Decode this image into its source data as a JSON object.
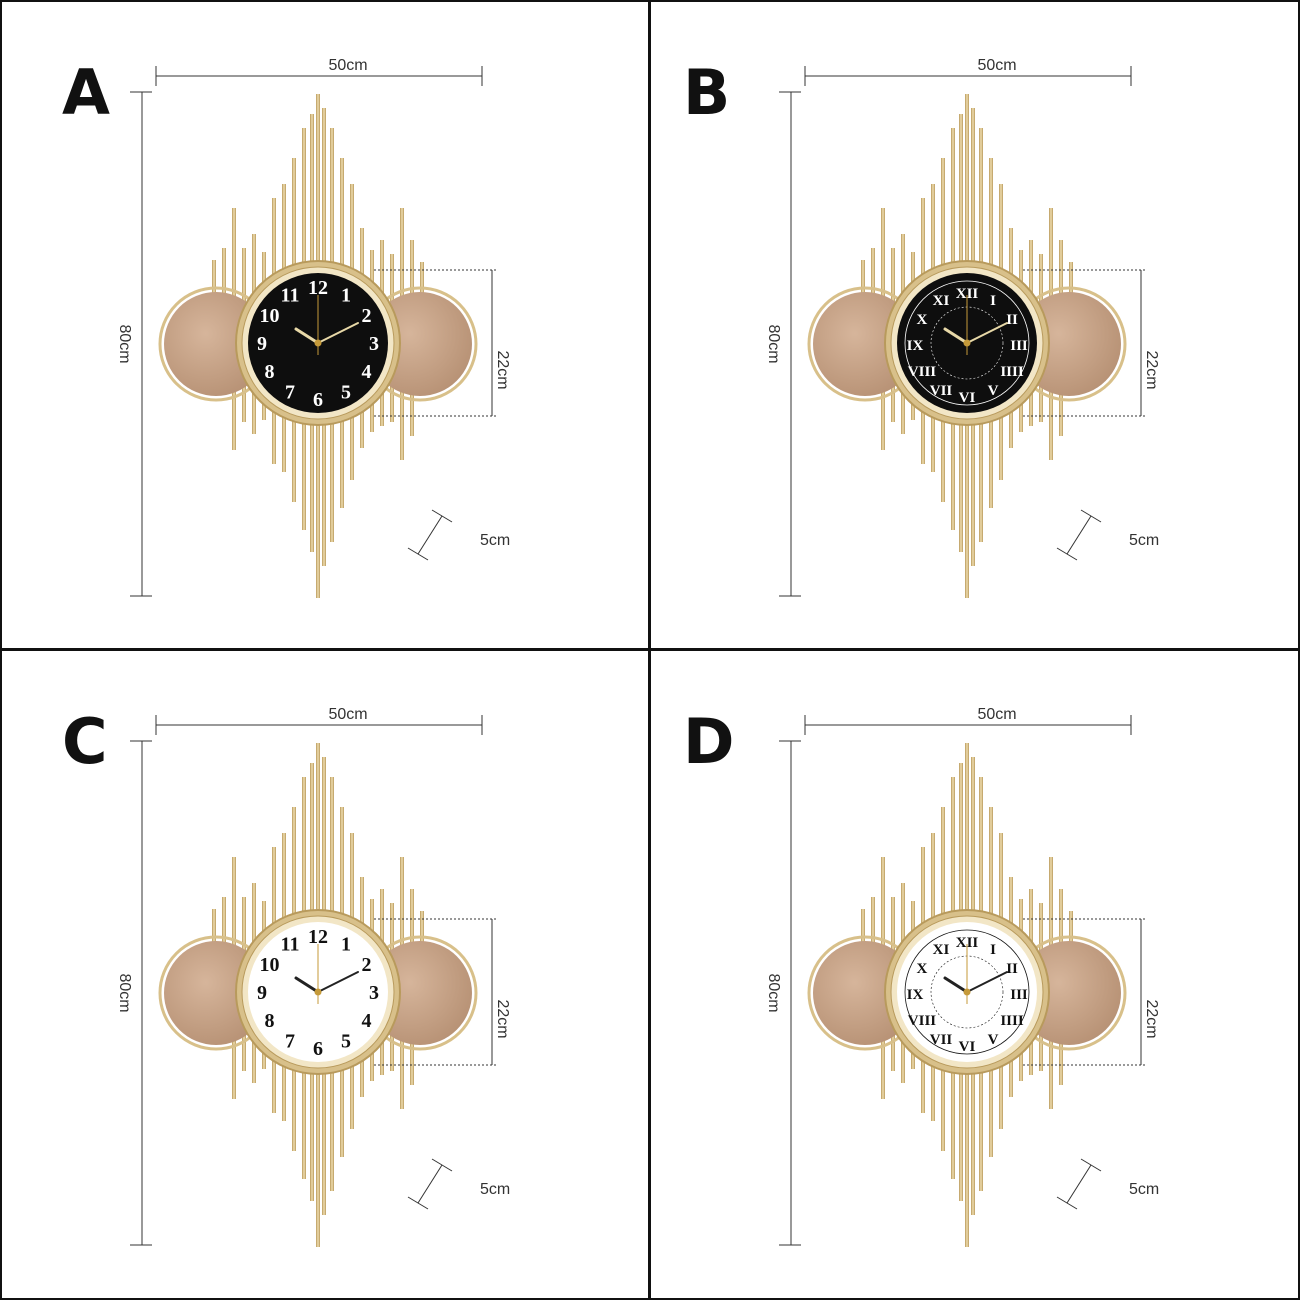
{
  "panels": [
    {
      "label": "A",
      "width": "50cm",
      "height": "80cm",
      "clock_diameter": "22cm",
      "depth": "5cm",
      "dial": "black",
      "numerals": "arabic"
    },
    {
      "label": "B",
      "width": "50cm",
      "height": "80cm",
      "clock_diameter": "22cm",
      "depth": "5cm",
      "dial": "black",
      "numerals": "roman"
    },
    {
      "label": "C",
      "width": "50cm",
      "height": "80cm",
      "clock_diameter": "22cm",
      "depth": "5cm",
      "dial": "white",
      "numerals": "arabic"
    },
    {
      "label": "D",
      "width": "50cm",
      "height": "80cm",
      "clock_diameter": "22cm",
      "depth": "5cm",
      "dial": "white",
      "numerals": "roman"
    }
  ],
  "numerals": {
    "arabic": [
      "12",
      "1",
      "2",
      "3",
      "4",
      "5",
      "6",
      "7",
      "8",
      "9",
      "10",
      "11"
    ],
    "roman": [
      "XII",
      "I",
      "II",
      "III",
      "IIII",
      "V",
      "VI",
      "VII",
      "VIII",
      "IX",
      "X",
      "XI"
    ]
  },
  "colors": {
    "gold": "#d8c08a",
    "gold_dark": "#b89a5c",
    "mirror": "#b58f72",
    "mirror_light": "#d6b59b",
    "dial_black": "#0e0e0e",
    "dial_white": "#ffffff",
    "line": "#333333"
  },
  "icons": {
    "clock": "wall-clock-icon",
    "mirror": "round-mirror-icon"
  }
}
